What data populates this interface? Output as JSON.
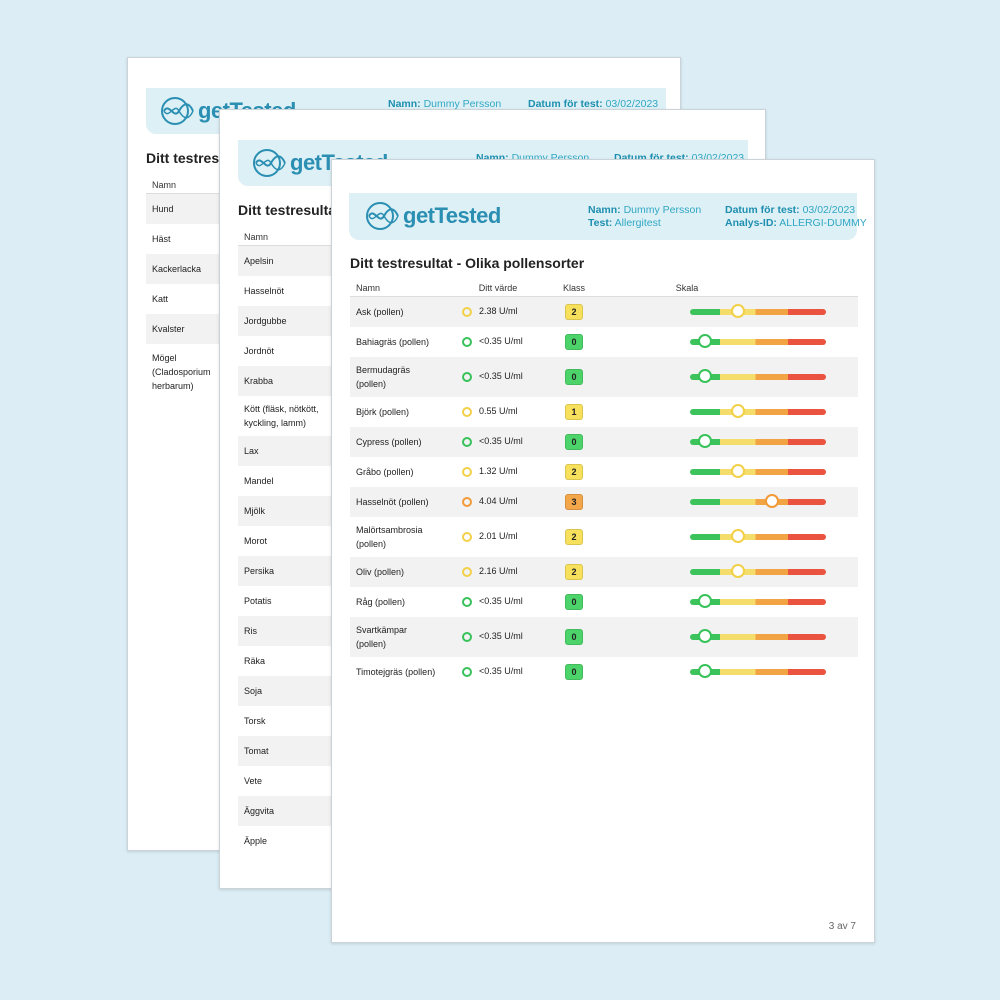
{
  "header": {
    "brand": "getTested",
    "name_label": "Namn:",
    "name_value": "Dummy Persson",
    "date_label": "Datum för test:",
    "date_value": "03/02/2023",
    "test_label": "Test:",
    "test_value": "Allergitest",
    "analysis_label": "Analys-ID:",
    "analysis_value": "ALLERGI-DUMMY"
  },
  "sheet1": {
    "title": "Ditt testresu",
    "col_name": "Namn",
    "rows": [
      {
        "name": "Hund",
        "lines": 1
      },
      {
        "name": "Häst",
        "lines": 1
      },
      {
        "name": "Kackerlacka",
        "lines": 1
      },
      {
        "name": "Katt",
        "lines": 1
      },
      {
        "name": "Kvalster",
        "lines": 1
      },
      {
        "name": "Mögel\n(Cladosporium\nherbarum)",
        "lines": 3
      }
    ]
  },
  "sheet2": {
    "title": "Ditt testresultat",
    "col_name": "Namn",
    "rows": [
      {
        "name": "Apelsin",
        "lines": 1
      },
      {
        "name": "Hasselnöt",
        "lines": 1
      },
      {
        "name": "Jordgubbe",
        "lines": 1
      },
      {
        "name": "Jordnöt",
        "lines": 1
      },
      {
        "name": "Krabba",
        "lines": 1
      },
      {
        "name": "Kött (fläsk, nötkött,\nkyckling, lamm)",
        "lines": 2
      },
      {
        "name": "Lax",
        "lines": 1
      },
      {
        "name": "Mandel",
        "lines": 1
      },
      {
        "name": "Mjölk",
        "lines": 1
      },
      {
        "name": "Morot",
        "lines": 1
      },
      {
        "name": "Persika",
        "lines": 1
      },
      {
        "name": "Potatis",
        "lines": 1
      },
      {
        "name": "Ris",
        "lines": 1
      },
      {
        "name": "Räka",
        "lines": 1
      },
      {
        "name": "Soja",
        "lines": 1
      },
      {
        "name": "Torsk",
        "lines": 1
      },
      {
        "name": "Tomat",
        "lines": 1
      },
      {
        "name": "Vete",
        "lines": 1
      },
      {
        "name": "Äggvita",
        "lines": 1
      },
      {
        "name": "Äpple",
        "lines": 1
      }
    ]
  },
  "sheet3": {
    "title": "Ditt testresultat - Olika pollensorter",
    "columns": [
      "Namn",
      "Ditt värde",
      "Klass",
      "Skala"
    ],
    "page": "3 av 7",
    "class_colors": {
      "0": "#4cd46a",
      "1": "#f7e15c",
      "2": "#f7e15c",
      "3": "#f3a64a"
    },
    "rows": [
      {
        "name": "Ask (pollen)",
        "lines": 1,
        "value": "2.38 U/ml",
        "klass": 2,
        "scale": 0.35
      },
      {
        "name": "Bahiagräs (pollen)",
        "lines": 1,
        "value": "<0.35 U/ml",
        "klass": 0,
        "scale": 0.11
      },
      {
        "name": "Bermudagräs\n(pollen)",
        "lines": 2,
        "value": "<0.35 U/ml",
        "klass": 0,
        "scale": 0.11
      },
      {
        "name": "Björk (pollen)",
        "lines": 1,
        "value": "0.55 U/ml",
        "klass": 1,
        "scale": 0.35
      },
      {
        "name": "Cypress (pollen)",
        "lines": 1,
        "value": "<0.35 U/ml",
        "klass": 0,
        "scale": 0.11
      },
      {
        "name": "Gråbo (pollen)",
        "lines": 1,
        "value": "1.32 U/ml",
        "klass": 2,
        "scale": 0.35
      },
      {
        "name": "Hasselnöt (pollen)",
        "lines": 1,
        "value": "4.04 U/ml",
        "klass": 3,
        "scale": 0.6
      },
      {
        "name": "Malörtsambrosia\n(pollen)",
        "lines": 2,
        "value": "2.01 U/ml",
        "klass": 2,
        "scale": 0.35
      },
      {
        "name": "Oliv (pollen)",
        "lines": 1,
        "value": "2.16 U/ml",
        "klass": 2,
        "scale": 0.35
      },
      {
        "name": "Råg (pollen)",
        "lines": 1,
        "value": "<0.35 U/ml",
        "klass": 0,
        "scale": 0.11
      },
      {
        "name": "Svartkämpar\n(pollen)",
        "lines": 2,
        "value": "<0.35 U/ml",
        "klass": 0,
        "scale": 0.11
      },
      {
        "name": "Timotejgräs (pollen)",
        "lines": 1,
        "value": "<0.35 U/ml",
        "klass": 0,
        "scale": 0.11
      }
    ]
  }
}
